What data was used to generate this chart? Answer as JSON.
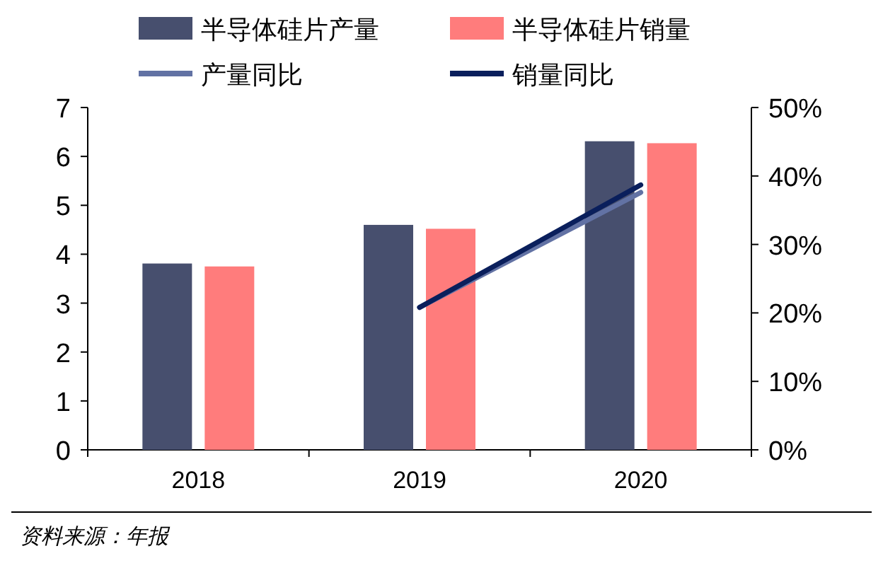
{
  "chart_data": {
    "type": "bar",
    "categories": [
      "2018",
      "2019",
      "2020"
    ],
    "series": [
      {
        "name": "半导体硅片产量",
        "color": "#474f6e",
        "values": [
          3.81,
          4.6,
          6.31
        ]
      },
      {
        "name": "半导体硅片销量",
        "color": "#ff7c7c",
        "values": [
          3.75,
          4.52,
          6.27
        ]
      },
      {
        "name": "产量同比",
        "type": "line",
        "axis": "y2",
        "color": "#6272a4",
        "values": [
          null,
          20.8,
          37.6
        ]
      },
      {
        "name": "销量同比",
        "type": "line",
        "axis": "y2",
        "color": "#0a1f5c",
        "values": [
          null,
          20.8,
          38.7
        ]
      }
    ],
    "ylim": [
      0,
      7
    ],
    "yticks": [
      0,
      1,
      2,
      3,
      4,
      5,
      6,
      7
    ],
    "y2lim": [
      0,
      50
    ],
    "y2ticks": [
      {
        "value": 0,
        "label": "0%"
      },
      {
        "value": 10,
        "label": "10%"
      },
      {
        "value": 20,
        "label": "20%"
      },
      {
        "value": 30,
        "label": "30%"
      },
      {
        "value": 40,
        "label": "40%"
      },
      {
        "value": 50,
        "label": "50%"
      }
    ],
    "legend": "top",
    "annotations": [
      "资料来源：年报"
    ]
  }
}
